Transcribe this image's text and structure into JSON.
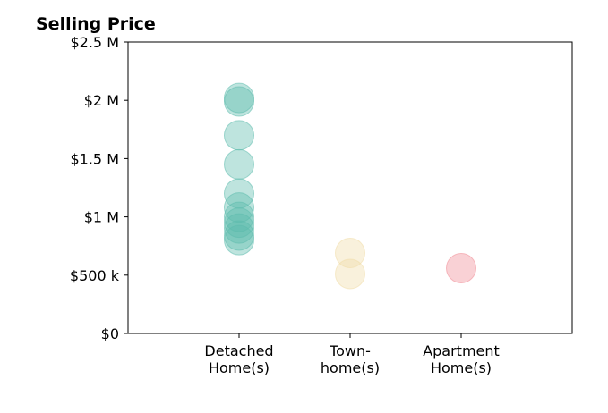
{
  "chart_data": {
    "type": "scatter",
    "title": "Selling Price",
    "xlabel": "",
    "ylabel": "",
    "ylim": [
      0,
      2500000
    ],
    "y_ticks": [
      {
        "value": 0,
        "label": "$0"
      },
      {
        "value": 500000,
        "label": "$500 k"
      },
      {
        "value": 1000000,
        "label": "$1 M"
      },
      {
        "value": 1500000,
        "label": "$1.5 M"
      },
      {
        "value": 2000000,
        "label": "$2 M"
      },
      {
        "value": 2500000,
        "label": "$2.5 M"
      }
    ],
    "categories": [
      {
        "line1": "Detached",
        "line2": "Home(s)"
      },
      {
        "line1": "Town-",
        "line2": "home(s)"
      },
      {
        "line1": "Apartment",
        "line2": "Home(s)"
      }
    ],
    "grid": false,
    "series": [
      {
        "category_index": 0,
        "color": "#5dbcad",
        "values": [
          2020000,
          1990000,
          1700000,
          1450000,
          1200000,
          1080000,
          1000000,
          950000,
          900000,
          840000,
          800000
        ]
      },
      {
        "category_index": 1,
        "color": "#f0dca8",
        "values": [
          690000,
          510000
        ]
      },
      {
        "category_index": 2,
        "color": "#f08c96",
        "values": [
          560000
        ]
      }
    ]
  }
}
